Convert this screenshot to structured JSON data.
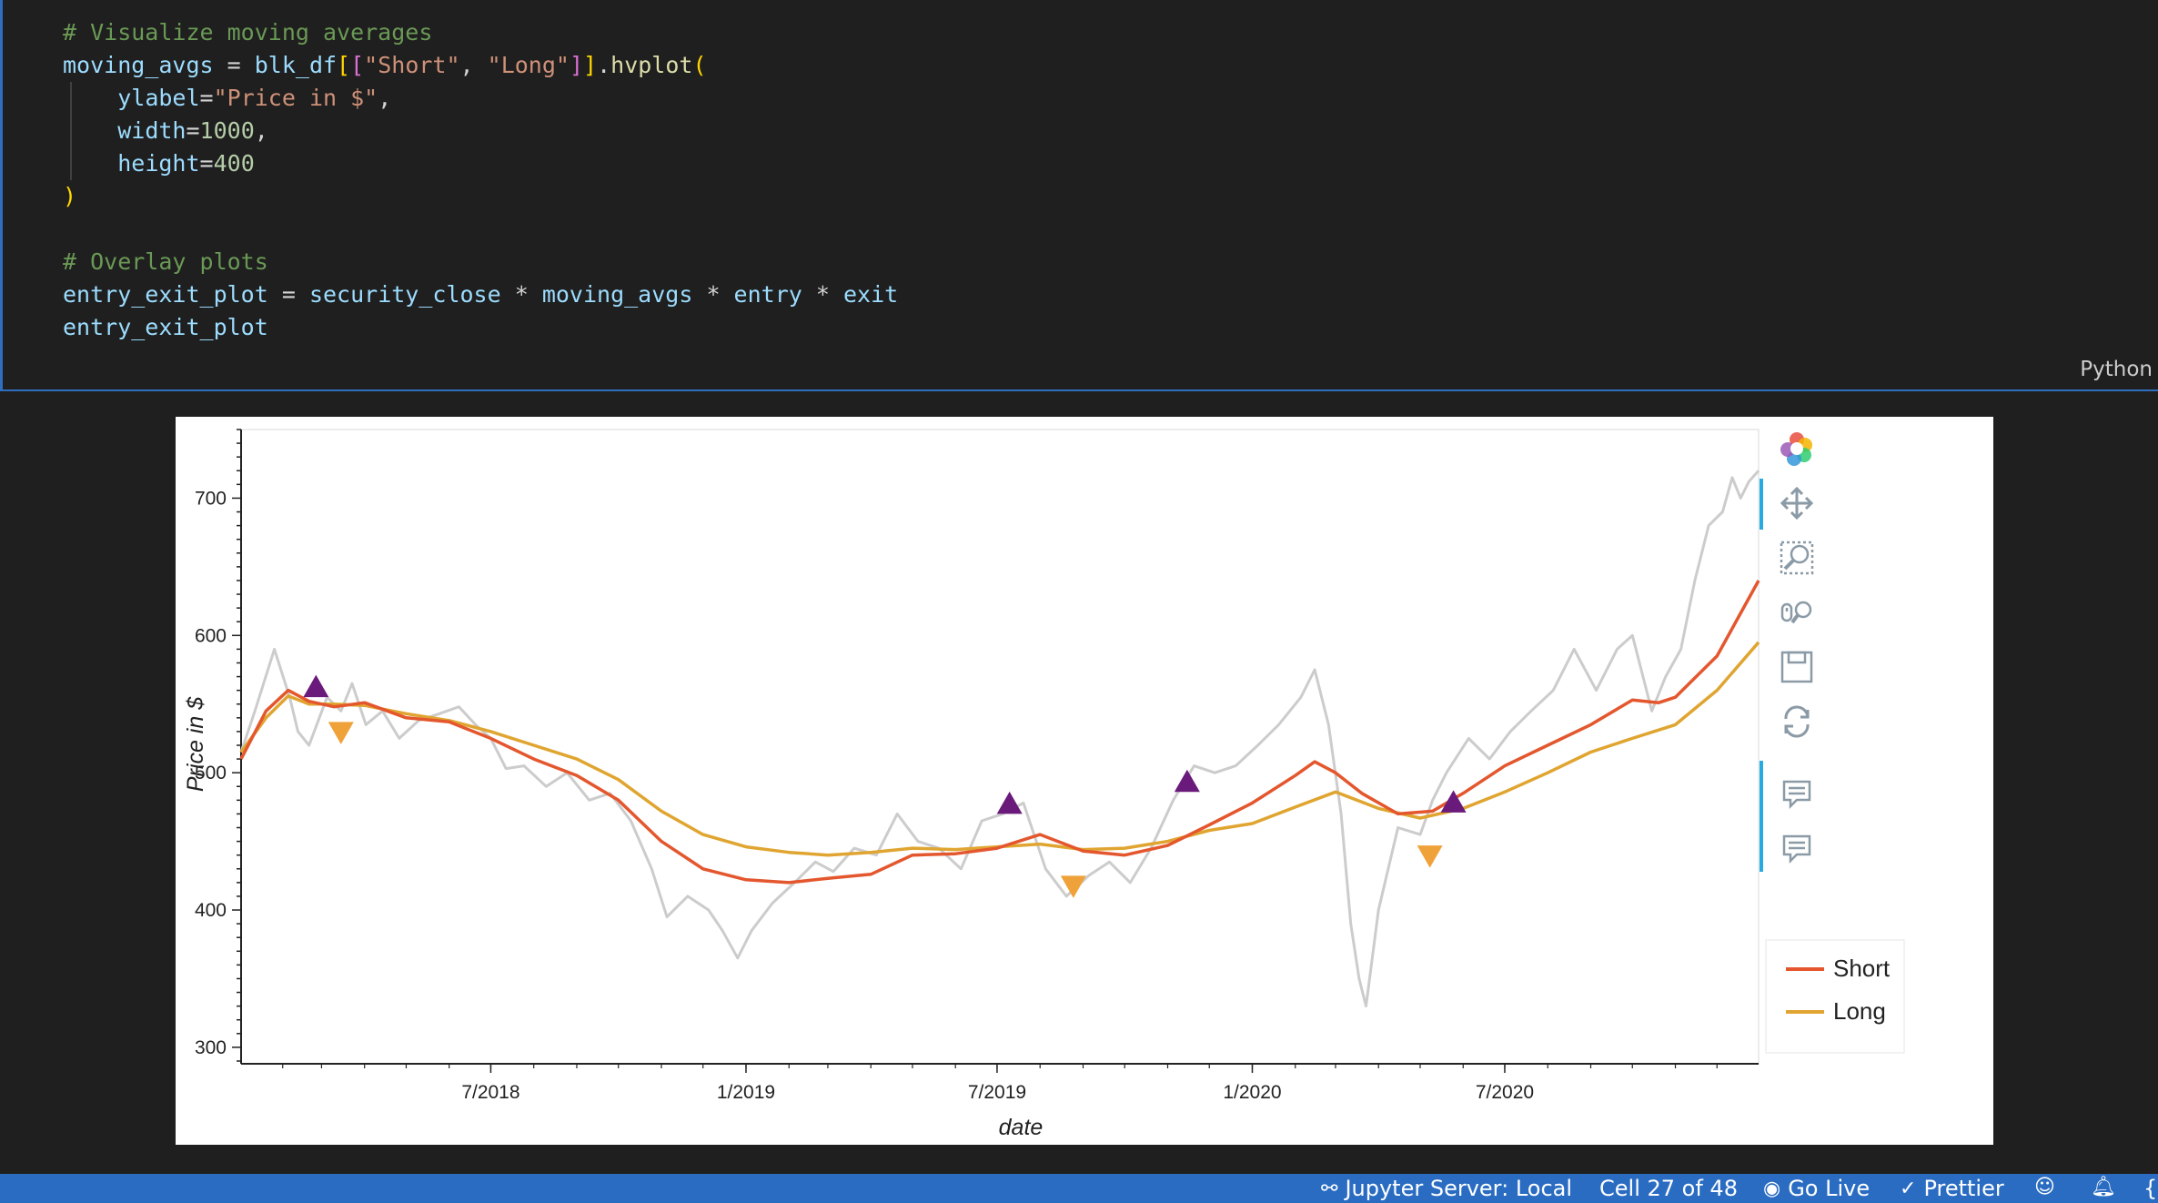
{
  "code_cell": {
    "lines": [
      [
        {
          "t": "# Visualize moving averages",
          "c": "comment"
        }
      ],
      [
        {
          "t": "moving_avgs",
          "c": "var"
        },
        {
          "t": " = ",
          "c": "op"
        },
        {
          "t": "blk_df",
          "c": "var"
        },
        {
          "t": "[",
          "c": "paren1"
        },
        {
          "t": "[",
          "c": "paren2"
        },
        {
          "t": "\"Short\"",
          "c": "str"
        },
        {
          "t": ", ",
          "c": "punct"
        },
        {
          "t": "\"Long\"",
          "c": "str"
        },
        {
          "t": "]",
          "c": "paren2"
        },
        {
          "t": "]",
          "c": "paren1"
        },
        {
          "t": ".",
          "c": "punct"
        },
        {
          "t": "hvplot",
          "c": "fn"
        },
        {
          "t": "(",
          "c": "paren1"
        }
      ],
      [
        {
          "t": "    ",
          "c": "op"
        },
        {
          "t": "ylabel",
          "c": "var"
        },
        {
          "t": "=",
          "c": "op"
        },
        {
          "t": "\"Price in $\"",
          "c": "str"
        },
        {
          "t": ",",
          "c": "punct"
        }
      ],
      [
        {
          "t": "    ",
          "c": "op"
        },
        {
          "t": "width",
          "c": "var"
        },
        {
          "t": "=",
          "c": "op"
        },
        {
          "t": "1000",
          "c": "num"
        },
        {
          "t": ",",
          "c": "punct"
        }
      ],
      [
        {
          "t": "    ",
          "c": "op"
        },
        {
          "t": "height",
          "c": "var"
        },
        {
          "t": "=",
          "c": "op"
        },
        {
          "t": "400",
          "c": "num"
        }
      ],
      [
        {
          "t": ")",
          "c": "paren1"
        }
      ],
      [
        {
          "t": "",
          "c": "op"
        }
      ],
      [
        {
          "t": "# Overlay plots",
          "c": "comment"
        }
      ],
      [
        {
          "t": "entry_exit_plot",
          "c": "var"
        },
        {
          "t": " = ",
          "c": "op"
        },
        {
          "t": "security_close",
          "c": "var"
        },
        {
          "t": " * ",
          "c": "op"
        },
        {
          "t": "moving_avgs",
          "c": "var"
        },
        {
          "t": " * ",
          "c": "op"
        },
        {
          "t": "entry",
          "c": "var"
        },
        {
          "t": " * ",
          "c": "op"
        },
        {
          "t": "exit",
          "c": "var"
        }
      ],
      [
        {
          "t": "entry_exit_plot",
          "c": "var"
        }
      ]
    ],
    "language": "Python"
  },
  "chart_data": {
    "type": "line",
    "xlabel": "date",
    "ylabel": "Price in $",
    "x_ticks": [
      "7/2018",
      "1/2019",
      "7/2019",
      "1/2020",
      "7/2020"
    ],
    "x_range": [
      "2018-01-02",
      "2020-12-31"
    ],
    "ylim": [
      288,
      750
    ],
    "y_ticks": [
      300,
      400,
      500,
      600,
      700
    ],
    "legend": {
      "placement": "right-bottom",
      "entries": [
        "Short",
        "Long"
      ]
    },
    "series": [
      {
        "name": "Short",
        "color": "#e4572e",
        "points": [
          [
            "2018-01-02",
            510
          ],
          [
            "2018-01-20",
            545
          ],
          [
            "2018-02-05",
            560
          ],
          [
            "2018-02-20",
            552
          ],
          [
            "2018-03-10",
            548
          ],
          [
            "2018-04-01",
            551
          ],
          [
            "2018-05-01",
            540
          ],
          [
            "2018-06-01",
            537
          ],
          [
            "2018-07-01",
            525
          ],
          [
            "2018-08-01",
            510
          ],
          [
            "2018-09-01",
            498
          ],
          [
            "2018-10-01",
            480
          ],
          [
            "2018-11-01",
            450
          ],
          [
            "2018-12-01",
            430
          ],
          [
            "2019-01-01",
            422
          ],
          [
            "2019-02-01",
            420
          ],
          [
            "2019-03-01",
            423
          ],
          [
            "2019-04-01",
            426
          ],
          [
            "2019-05-01",
            440
          ],
          [
            "2019-06-01",
            441
          ],
          [
            "2019-07-01",
            445
          ],
          [
            "2019-08-01",
            455
          ],
          [
            "2019-09-01",
            443
          ],
          [
            "2019-10-01",
            440
          ],
          [
            "2019-11-01",
            447
          ],
          [
            "2019-12-01",
            462
          ],
          [
            "2020-01-01",
            478
          ],
          [
            "2020-02-01",
            498
          ],
          [
            "2020-02-15",
            508
          ],
          [
            "2020-03-01",
            500
          ],
          [
            "2020-03-20",
            485
          ],
          [
            "2020-04-15",
            470
          ],
          [
            "2020-05-10",
            472
          ],
          [
            "2020-06-01",
            485
          ],
          [
            "2020-07-01",
            505
          ],
          [
            "2020-08-01",
            520
          ],
          [
            "2020-09-01",
            535
          ],
          [
            "2020-10-01",
            553
          ],
          [
            "2020-10-20",
            551
          ],
          [
            "2020-11-01",
            555
          ],
          [
            "2020-12-01",
            585
          ],
          [
            "2020-12-31",
            640
          ]
        ]
      },
      {
        "name": "Long",
        "color": "#e0a530",
        "points": [
          [
            "2018-01-02",
            515
          ],
          [
            "2018-01-20",
            540
          ],
          [
            "2018-02-05",
            556
          ],
          [
            "2018-02-20",
            550
          ],
          [
            "2018-03-10",
            550
          ],
          [
            "2018-04-01",
            549
          ],
          [
            "2018-05-01",
            543
          ],
          [
            "2018-06-01",
            538
          ],
          [
            "2018-07-01",
            530
          ],
          [
            "2018-08-01",
            520
          ],
          [
            "2018-09-01",
            510
          ],
          [
            "2018-10-01",
            495
          ],
          [
            "2018-11-01",
            472
          ],
          [
            "2018-12-01",
            455
          ],
          [
            "2019-01-01",
            446
          ],
          [
            "2019-02-01",
            442
          ],
          [
            "2019-03-01",
            440
          ],
          [
            "2019-04-01",
            442
          ],
          [
            "2019-05-01",
            445
          ],
          [
            "2019-06-01",
            444
          ],
          [
            "2019-07-01",
            446
          ],
          [
            "2019-08-01",
            448
          ],
          [
            "2019-09-01",
            444
          ],
          [
            "2019-10-01",
            445
          ],
          [
            "2019-11-01",
            450
          ],
          [
            "2019-12-01",
            458
          ],
          [
            "2020-01-01",
            463
          ],
          [
            "2020-02-01",
            475
          ],
          [
            "2020-03-01",
            486
          ],
          [
            "2020-04-01",
            474
          ],
          [
            "2020-05-01",
            467
          ],
          [
            "2020-06-01",
            474
          ],
          [
            "2020-07-01",
            486
          ],
          [
            "2020-08-01",
            500
          ],
          [
            "2020-09-01",
            515
          ],
          [
            "2020-10-01",
            525
          ],
          [
            "2020-11-01",
            535
          ],
          [
            "2020-12-01",
            560
          ],
          [
            "2020-12-31",
            595
          ]
        ]
      },
      {
        "color": "#cccccc",
        "points": [
          [
            "2018-01-02",
            515
          ],
          [
            "2018-01-12",
            545
          ],
          [
            "2018-01-26",
            590
          ],
          [
            "2018-02-06",
            555
          ],
          [
            "2018-02-12",
            530
          ],
          [
            "2018-02-20",
            520
          ],
          [
            "2018-03-05",
            555
          ],
          [
            "2018-03-15",
            545
          ],
          [
            "2018-03-23",
            565
          ],
          [
            "2018-04-02",
            535
          ],
          [
            "2018-04-14",
            545
          ],
          [
            "2018-04-26",
            525
          ],
          [
            "2018-05-10",
            538
          ],
          [
            "2018-05-25",
            543
          ],
          [
            "2018-06-08",
            548
          ],
          [
            "2018-06-20",
            535
          ],
          [
            "2018-07-01",
            525
          ],
          [
            "2018-07-12",
            503
          ],
          [
            "2018-07-25",
            505
          ],
          [
            "2018-08-10",
            490
          ],
          [
            "2018-08-25",
            500
          ],
          [
            "2018-09-10",
            480
          ],
          [
            "2018-09-25",
            485
          ],
          [
            "2018-10-10",
            465
          ],
          [
            "2018-10-25",
            430
          ],
          [
            "2018-11-05",
            395
          ],
          [
            "2018-11-20",
            410
          ],
          [
            "2018-12-05",
            400
          ],
          [
            "2018-12-15",
            385
          ],
          [
            "2018-12-26",
            365
          ],
          [
            "2019-01-05",
            385
          ],
          [
            "2019-01-20",
            405
          ],
          [
            "2019-02-05",
            420
          ],
          [
            "2019-02-20",
            435
          ],
          [
            "2019-03-05",
            428
          ],
          [
            "2019-03-20",
            445
          ],
          [
            "2019-04-05",
            440
          ],
          [
            "2019-04-20",
            470
          ],
          [
            "2019-05-05",
            450
          ],
          [
            "2019-05-20",
            445
          ],
          [
            "2019-06-05",
            430
          ],
          [
            "2019-06-20",
            465
          ],
          [
            "2019-07-05",
            470
          ],
          [
            "2019-07-20",
            478
          ],
          [
            "2019-08-05",
            430
          ],
          [
            "2019-08-20",
            410
          ],
          [
            "2019-09-05",
            425
          ],
          [
            "2019-09-20",
            435
          ],
          [
            "2019-10-05",
            420
          ],
          [
            "2019-10-20",
            445
          ],
          [
            "2019-11-05",
            480
          ],
          [
            "2019-11-20",
            505
          ],
          [
            "2019-12-05",
            500
          ],
          [
            "2019-12-20",
            505
          ],
          [
            "2020-01-05",
            520
          ],
          [
            "2020-01-20",
            535
          ],
          [
            "2020-02-05",
            555
          ],
          [
            "2020-02-15",
            575
          ],
          [
            "2020-02-25",
            535
          ],
          [
            "2020-03-05",
            470
          ],
          [
            "2020-03-12",
            390
          ],
          [
            "2020-03-18",
            350
          ],
          [
            "2020-03-23",
            330
          ],
          [
            "2020-04-01",
            400
          ],
          [
            "2020-04-15",
            460
          ],
          [
            "2020-05-01",
            455
          ],
          [
            "2020-05-10",
            480
          ],
          [
            "2020-05-20",
            500
          ],
          [
            "2020-06-05",
            525
          ],
          [
            "2020-06-20",
            510
          ],
          [
            "2020-07-05",
            530
          ],
          [
            "2020-07-20",
            545
          ],
          [
            "2020-08-05",
            560
          ],
          [
            "2020-08-20",
            590
          ],
          [
            "2020-09-05",
            560
          ],
          [
            "2020-09-20",
            590
          ],
          [
            "2020-10-01",
            600
          ],
          [
            "2020-10-15",
            545
          ],
          [
            "2020-10-25",
            570
          ],
          [
            "2020-11-05",
            590
          ],
          [
            "2020-11-15",
            640
          ],
          [
            "2020-11-25",
            680
          ],
          [
            "2020-12-05",
            690
          ],
          [
            "2020-12-12",
            715
          ],
          [
            "2020-12-18",
            700
          ],
          [
            "2020-12-24",
            712
          ],
          [
            "2020-12-31",
            720
          ]
        ]
      }
    ],
    "entry_points": {
      "marker": "triangle-up",
      "color": "#6a1a7a",
      "points": [
        [
          "2018-02-25",
          562
        ],
        [
          "2019-07-10",
          477
        ],
        [
          "2019-11-15",
          493
        ],
        [
          "2020-05-25",
          478
        ]
      ]
    },
    "exit_points": {
      "marker": "triangle-down",
      "color": "#f0a23a",
      "points": [
        [
          "2018-03-15",
          530
        ],
        [
          "2019-08-25",
          418
        ],
        [
          "2020-05-08",
          440
        ]
      ]
    }
  },
  "toolbar": {
    "tools": [
      "bokeh-logo-icon",
      "pan-icon",
      "box-zoom-icon",
      "wheel-zoom-icon",
      "save-icon",
      "reset-icon",
      "hover-icon",
      "hover-icon-2"
    ]
  },
  "status_bar": {
    "jupyter": "Jupyter Server: Local",
    "cell": "Cell 27 of 48",
    "go_live": "Go Live",
    "prettier": "Prettier"
  }
}
